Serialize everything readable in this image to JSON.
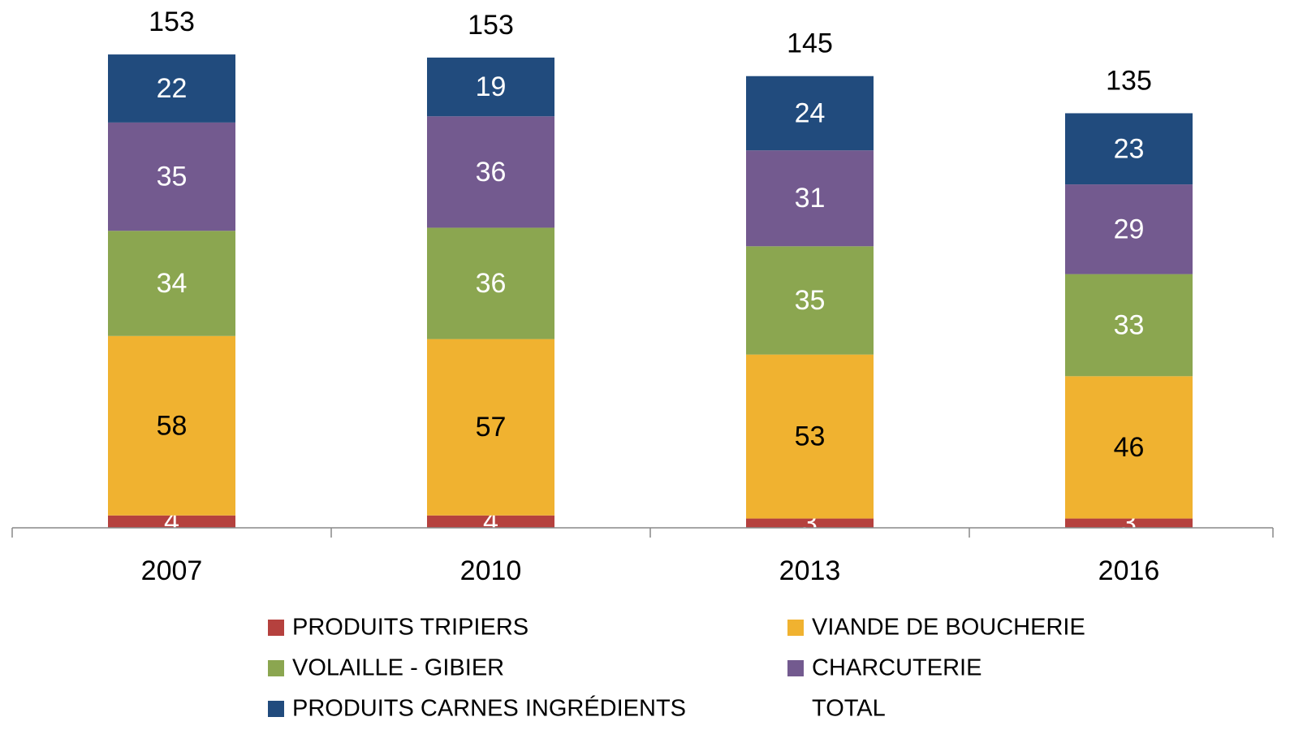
{
  "chart_data": {
    "type": "stacked-bar",
    "categories": [
      "2007",
      "2010",
      "2013",
      "2016"
    ],
    "series": [
      {
        "name": "PRODUITS TRIPIERS",
        "color": "#b5413e",
        "values": [
          4,
          4,
          3,
          3
        ]
      },
      {
        "name": "VIANDE DE BOUCHERIE",
        "color": "#f0b230",
        "values": [
          58,
          57,
          53,
          46
        ]
      },
      {
        "name": "VOLAILLE - GIBIER",
        "color": "#8ba650",
        "values": [
          34,
          36,
          35,
          33
        ]
      },
      {
        "name": "CHARCUTERIE",
        "color": "#735a8f",
        "values": [
          35,
          36,
          31,
          29
        ]
      },
      {
        "name": "PRODUITS CARNES INGRÉDIENTS",
        "color": "#214b7d",
        "values": [
          22,
          19,
          24,
          23
        ]
      },
      {
        "name": "TOTAL",
        "values": [
          153,
          153,
          145,
          135
        ]
      }
    ]
  }
}
